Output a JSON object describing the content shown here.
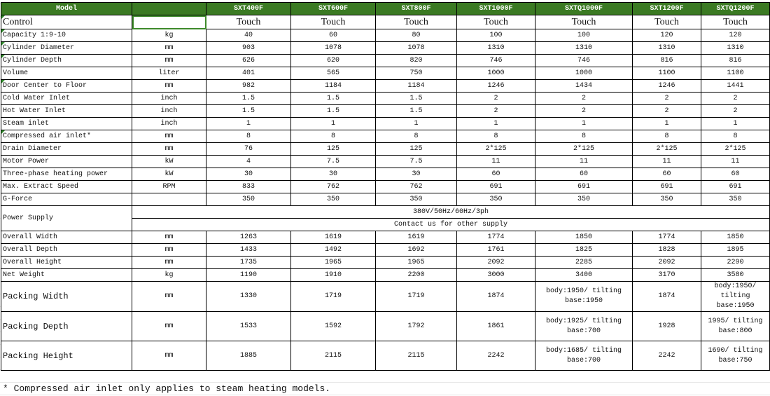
{
  "header": {
    "label": "Model",
    "unit": "",
    "models": [
      "SXT400F",
      "SXT600F",
      "SXT800F",
      "SXT1000F",
      "SXTQ1000F",
      "SXT1200F",
      "SXTQ1200F"
    ]
  },
  "control": {
    "label": "Control",
    "unit": "",
    "values": [
      "Touch",
      "Touch",
      "Touch",
      "Touch",
      "Touch",
      "Touch",
      "Touch"
    ]
  },
  "rows": [
    {
      "label": "Capacity 1:9-10",
      "unit": "kg",
      "values": [
        "40",
        "60",
        "80",
        "100",
        "100",
        "120",
        "120"
      ]
    },
    {
      "label": "Cylinder Diameter",
      "unit": "mm",
      "values": [
        "903",
        "1078",
        "1078",
        "1310",
        "1310",
        "1310",
        "1310"
      ]
    },
    {
      "label": "Cylinder Depth",
      "unit": "mm",
      "values": [
        "626",
        "620",
        "820",
        "746",
        "746",
        "816",
        "816"
      ]
    },
    {
      "label": "Volume",
      "unit": "liter",
      "values": [
        "401",
        "565",
        "750",
        "1000",
        "1000",
        "1100",
        "1100"
      ]
    },
    {
      "label": "Door Center to Floor",
      "unit": "mm",
      "values": [
        "982",
        "1184",
        "1184",
        "1246",
        "1434",
        "1246",
        "1441"
      ]
    },
    {
      "label": "Cold Water Inlet",
      "unit": "inch",
      "values": [
        "1.5",
        "1.5",
        "1.5",
        "2",
        "2",
        "2",
        "2"
      ]
    },
    {
      "label": "Hot Water Inlet",
      "unit": "inch",
      "values": [
        "1.5",
        "1.5",
        "1.5",
        "2",
        "2",
        "2",
        "2"
      ]
    },
    {
      "label": "Steam inlet",
      "unit": "inch",
      "values": [
        "1",
        "1",
        "1",
        "1",
        "1",
        "1",
        "1"
      ]
    },
    {
      "label": "Compressed air inlet*",
      "unit": "mm",
      "values": [
        "8",
        "8",
        "8",
        "8",
        "8",
        "8",
        "8"
      ]
    },
    {
      "label": "Drain Diameter",
      "unit": "mm",
      "values": [
        "76",
        "125",
        "125",
        "2*125",
        "2*125",
        "2*125",
        "2*125"
      ]
    },
    {
      "label": "Motor Power",
      "unit": "kW",
      "values": [
        "4",
        "7.5",
        "7.5",
        "11",
        "11",
        "11",
        "11"
      ]
    },
    {
      "label": "Three-phase heating power",
      "unit": "kW",
      "values": [
        "30",
        "30",
        "30",
        "60",
        "60",
        "60",
        "60"
      ]
    },
    {
      "label": "Max. Extract Speed",
      "unit": "RPM",
      "values": [
        "833",
        "762",
        "762",
        "691",
        "691",
        "691",
        "691"
      ]
    },
    {
      "label": "G-Force",
      "unit": "",
      "values": [
        "350",
        "350",
        "350",
        "350",
        "350",
        "350",
        "350"
      ]
    }
  ],
  "power_supply": {
    "label": "Power Supply",
    "lines": [
      "380V/50Hz/60Hz/3ph",
      "Contact us for other supply"
    ]
  },
  "rows2": [
    {
      "label": "Overall Width",
      "unit": "mm",
      "values": [
        "1263",
        "1619",
        "1619",
        "1774",
        "1850",
        "1774",
        "1850"
      ]
    },
    {
      "label": "Overall Depth",
      "unit": "mm",
      "values": [
        "1433",
        "1492",
        "1692",
        "1761",
        "1825",
        "1828",
        "1895"
      ]
    },
    {
      "label": "Overall Height",
      "unit": "mm",
      "values": [
        "1735",
        "1965",
        "1965",
        "2092",
        "2285",
        "2092",
        "2290"
      ]
    },
    {
      "label": "Net Weight",
      "unit": "kg",
      "values": [
        "1190",
        "1910",
        "2200",
        "3000",
        "3400",
        "3170",
        "3580"
      ]
    }
  ],
  "rows3": [
    {
      "label": "Packing Width",
      "unit": "mm",
      "values": [
        "1330",
        "1719",
        "1719",
        "1874",
        "body:1950/ tilting base:1950",
        "1874",
        "body:1950/ tilting base:1950"
      ]
    },
    {
      "label": "Packing Depth",
      "unit": "mm",
      "values": [
        "1533",
        "1592",
        "1792",
        "1861",
        "body:1925/ tilting base:700",
        "1928",
        "1995/ tilting base:800"
      ]
    },
    {
      "label": "Packing Height",
      "unit": "mm",
      "values": [
        "1885",
        "2115",
        "2115",
        "2242",
        "body:1685/ tilting base:700",
        "2242",
        "1690/ tilting base:750"
      ]
    }
  ],
  "footnote": "* Compressed air inlet only applies to steam heating models.",
  "colors": {
    "header_bg": "#3b7a23",
    "header_text": "#ffffff",
    "selection": "#3e8a2b"
  }
}
